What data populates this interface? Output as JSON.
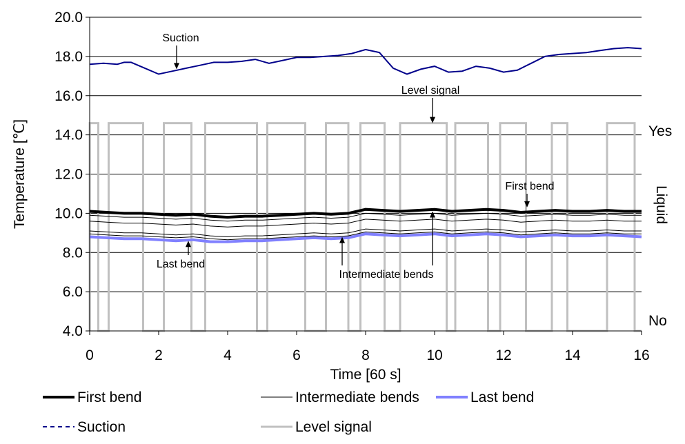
{
  "chart_data": {
    "type": "line",
    "xlabel": "Time [60 s]",
    "ylabel": "Temperature [℃]",
    "xlim": [
      0,
      16
    ],
    "ylim": [
      4.0,
      20.0
    ],
    "x_ticks": [
      "0",
      "2",
      "4",
      "6",
      "8",
      "10",
      "12",
      "14",
      "16"
    ],
    "y_ticks": [
      "4.0",
      "6.0",
      "8.0",
      "10.0",
      "12.0",
      "14.0",
      "16.0",
      "18.0",
      "20.0"
    ],
    "grid": "horizontal",
    "legend_position": "bottom",
    "right_axis": {
      "title": "Liquid",
      "top_label": "Yes",
      "bottom_label": "No"
    },
    "series": [
      {
        "name": "First bend",
        "color": "#000000",
        "style": "solid-thick",
        "x": [
          0,
          0.5,
          1,
          1.5,
          2,
          2.5,
          3,
          3.5,
          4,
          4.5,
          5,
          5.5,
          6,
          6.5,
          7,
          7.5,
          8,
          8.5,
          9,
          9.5,
          10,
          10.5,
          11,
          11.5,
          12,
          12.5,
          13,
          13.5,
          14,
          14.5,
          15,
          15.5,
          16
        ],
        "y": [
          10.1,
          10.05,
          10.0,
          10.0,
          9.95,
          9.9,
          9.95,
          9.85,
          9.8,
          9.85,
          9.85,
          9.9,
          9.95,
          10.0,
          9.95,
          10.0,
          10.2,
          10.15,
          10.1,
          10.15,
          10.2,
          10.1,
          10.15,
          10.2,
          10.15,
          10.05,
          10.1,
          10.15,
          10.1,
          10.1,
          10.15,
          10.1,
          10.1
        ]
      },
      {
        "name": "Intermediate bends",
        "color": "#000000",
        "style": "solid-thin",
        "lines": [
          [
            9.9,
            9.85,
            9.8,
            9.8,
            9.75,
            9.7,
            9.75,
            9.65,
            9.6,
            9.65,
            9.65,
            9.7,
            9.75,
            9.8,
            9.75,
            9.8,
            10.0,
            9.95,
            9.9,
            9.95,
            10.0,
            9.9,
            9.95,
            10.0,
            9.95,
            9.85,
            9.9,
            9.95,
            9.9,
            9.9,
            9.95,
            9.9,
            9.9
          ],
          [
            9.6,
            9.55,
            9.5,
            9.5,
            9.45,
            9.4,
            9.45,
            9.35,
            9.3,
            9.35,
            9.35,
            9.4,
            9.45,
            9.5,
            9.45,
            9.5,
            9.7,
            9.65,
            9.6,
            9.65,
            9.7,
            9.6,
            9.65,
            9.7,
            9.65,
            9.55,
            9.6,
            9.65,
            9.6,
            9.6,
            9.65,
            9.6,
            9.6
          ],
          [
            9.1,
            9.05,
            9.0,
            9.0,
            8.95,
            8.9,
            8.95,
            8.85,
            8.8,
            8.85,
            8.85,
            8.9,
            8.95,
            9.0,
            8.95,
            9.0,
            9.2,
            9.15,
            9.1,
            9.15,
            9.2,
            9.1,
            9.15,
            9.2,
            9.15,
            9.05,
            9.1,
            9.15,
            9.1,
            9.1,
            9.15,
            9.1,
            9.1
          ],
          [
            8.95,
            8.9,
            8.85,
            8.85,
            8.8,
            8.75,
            8.8,
            8.7,
            8.65,
            8.7,
            8.7,
            8.75,
            8.8,
            8.85,
            8.8,
            8.85,
            9.05,
            9.0,
            8.95,
            9.0,
            9.05,
            8.95,
            9.0,
            9.05,
            9.0,
            8.9,
            8.95,
            9.0,
            8.95,
            8.95,
            9.0,
            8.95,
            8.95
          ]
        ],
        "x": [
          0,
          0.5,
          1,
          1.5,
          2,
          2.5,
          3,
          3.5,
          4,
          4.5,
          5,
          5.5,
          6,
          6.5,
          7,
          7.5,
          8,
          8.5,
          9,
          9.5,
          10,
          10.5,
          11,
          11.5,
          12,
          12.5,
          13,
          13.5,
          14,
          14.5,
          15,
          15.5,
          16
        ]
      },
      {
        "name": "Last bend",
        "color": "#8080ff",
        "style": "solid-thick",
        "x": [
          0,
          0.5,
          1,
          1.5,
          2,
          2.5,
          3,
          3.5,
          4,
          4.5,
          5,
          5.5,
          6,
          6.5,
          7,
          7.5,
          8,
          8.5,
          9,
          9.5,
          10,
          10.5,
          11,
          11.5,
          12,
          12.5,
          13,
          13.5,
          14,
          14.5,
          15,
          15.5,
          16
        ],
        "y": [
          8.8,
          8.75,
          8.7,
          8.7,
          8.65,
          8.6,
          8.65,
          8.55,
          8.55,
          8.6,
          8.6,
          8.65,
          8.7,
          8.75,
          8.7,
          8.75,
          8.95,
          8.9,
          8.85,
          8.9,
          8.95,
          8.85,
          8.9,
          8.95,
          8.9,
          8.8,
          8.85,
          8.9,
          8.85,
          8.85,
          8.9,
          8.85,
          8.8
        ]
      },
      {
        "name": "Suction",
        "color": "#00008b",
        "style": "dashed",
        "x": [
          0,
          0.4,
          0.8,
          1.0,
          1.2,
          1.6,
          2.0,
          2.4,
          2.8,
          3.2,
          3.6,
          4.0,
          4.4,
          4.8,
          5.2,
          5.6,
          6.0,
          6.4,
          6.8,
          7.2,
          7.6,
          8.0,
          8.4,
          8.8,
          9.2,
          9.6,
          10.0,
          10.4,
          10.8,
          11.2,
          11.6,
          12.0,
          12.4,
          12.8,
          13.2,
          13.6,
          14.0,
          14.4,
          14.8,
          15.2,
          15.6,
          16.0
        ],
        "y": [
          17.6,
          17.65,
          17.6,
          17.7,
          17.7,
          17.4,
          17.1,
          17.25,
          17.4,
          17.55,
          17.7,
          17.7,
          17.75,
          17.85,
          17.65,
          17.8,
          17.95,
          17.95,
          18.0,
          18.05,
          18.15,
          18.35,
          18.2,
          17.4,
          17.1,
          17.35,
          17.5,
          17.2,
          17.25,
          17.5,
          17.4,
          17.2,
          17.3,
          17.65,
          18.0,
          18.1,
          18.15,
          18.2,
          18.3,
          18.4,
          18.45,
          18.4
        ]
      },
      {
        "name": "Level signal",
        "color": "#c0c0c0",
        "style": "solid",
        "high": 14.6,
        "low": 4.0,
        "pulses": [
          [
            0.0,
            0.25
          ],
          [
            0.55,
            1.55
          ],
          [
            2.15,
            2.95
          ],
          [
            3.35,
            4.85
          ],
          [
            5.15,
            6.25
          ],
          [
            6.85,
            7.5
          ],
          [
            7.85,
            8.55
          ],
          [
            9.0,
            10.35
          ],
          [
            10.6,
            11.55
          ],
          [
            11.9,
            12.65
          ],
          [
            13.4,
            13.85
          ],
          [
            15.0,
            15.8
          ]
        ]
      }
    ],
    "annotations": [
      {
        "text": "Suction",
        "target_x": 2.45,
        "target_y": 17.35
      },
      {
        "text": "Level signal",
        "target_x": 9.9,
        "target_y": 14.6
      },
      {
        "text": "First bend",
        "target_x": 12.75,
        "target_y": 10.3
      },
      {
        "text": "Last bend",
        "target_x": 2.85,
        "target_y": 8.6
      },
      {
        "text": "Intermediate bends",
        "target_x": 7.3,
        "target_y": 8.8
      },
      {
        "text": "",
        "target_x": 9.9,
        "target_y": 10.1
      }
    ]
  }
}
